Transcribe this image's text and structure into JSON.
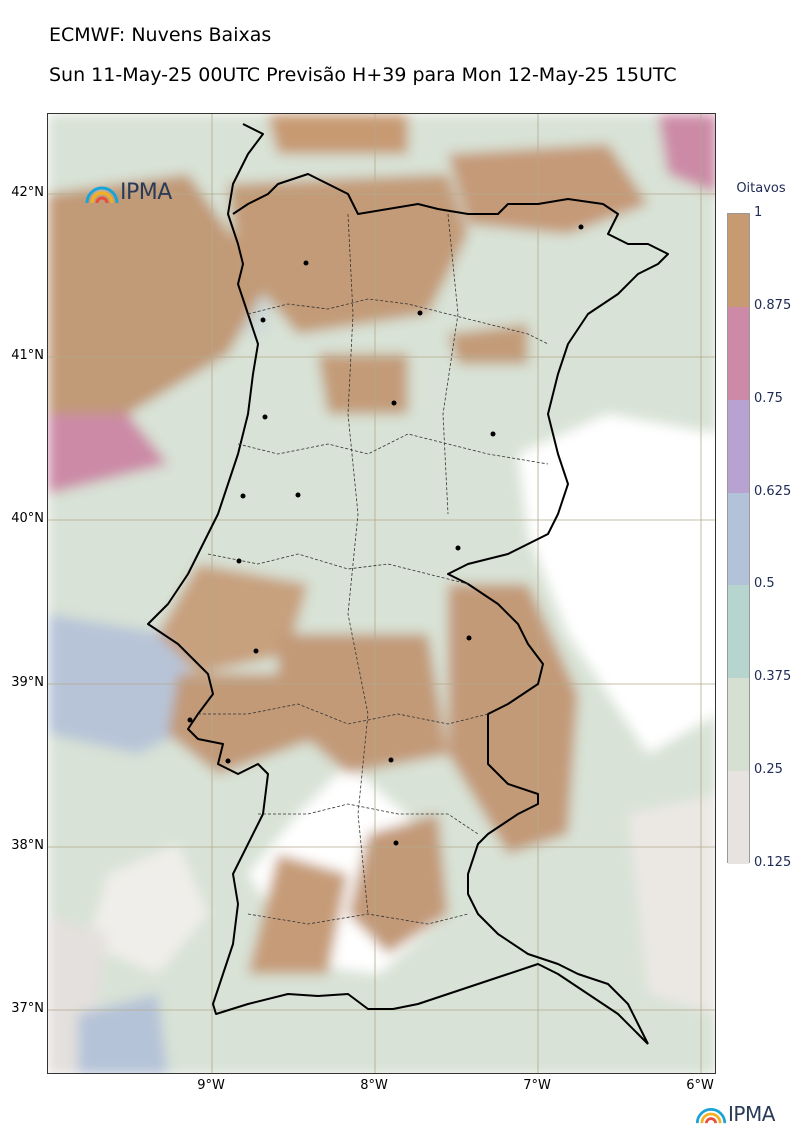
{
  "header": {
    "title": "ECMWF: Nuvens Baixas",
    "subtitle": "Sun 11-May-25 00UTC Previsão H+39 para Mon 12-May-25 15UTC"
  },
  "logos": {
    "map_logo_text": "IPMA",
    "footer_logo_text": "IPMA"
  },
  "axes": {
    "lat_labels": [
      "42°N",
      "41°N",
      "40°N",
      "39°N",
      "38°N",
      "37°N"
    ],
    "lon_labels": [
      "9°W",
      "8°W",
      "7°W",
      "6°W"
    ]
  },
  "colorbar": {
    "title": "Oitavos",
    "labels": [
      "1",
      "0.875",
      "0.75",
      "0.625",
      "0.5",
      "0.375",
      "0.25",
      "0.125"
    ],
    "colors": [
      "#c79a72",
      "#cc8aa6",
      "#b8a2d2",
      "#b2c2d8",
      "#b7d5cf",
      "#d5e0d3",
      "#e6e3e0"
    ]
  },
  "colors": {
    "land_line": "#000000",
    "grid_line": "#b3aa8c",
    "no_cloud": "#ffffff"
  }
}
